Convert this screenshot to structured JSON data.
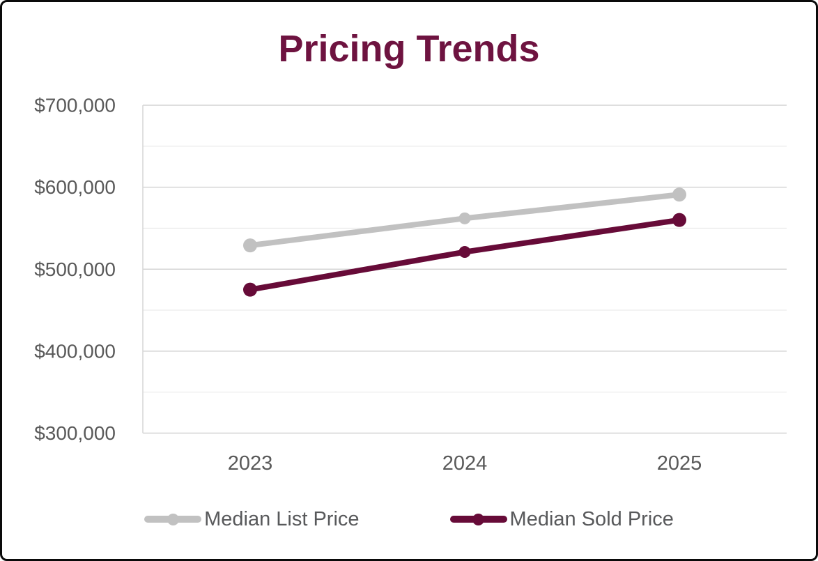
{
  "chart_data": {
    "type": "line",
    "title": "Pricing Trends",
    "categories": [
      "2023",
      "2024",
      "2025"
    ],
    "series": [
      {
        "name": "Median List Price",
        "color": "#C1C1C1",
        "values": [
          529000,
          562000,
          591000
        ]
      },
      {
        "name": "Median Sold Price",
        "color": "#670B38",
        "values": [
          475000,
          521000,
          560000
        ]
      }
    ],
    "ylim": [
      300000,
      700000
    ],
    "y_major_step": 100000,
    "y_minor_step": 50000,
    "y_tick_labels": [
      "$300,000",
      "$400,000",
      "$500,000",
      "$600,000",
      "$700,000"
    ],
    "grid": "horizontal",
    "legend_position": "bottom",
    "colors": {
      "title": "#6E1340",
      "axis_text": "#595959",
      "grid_major": "#D4D4D4",
      "grid_minor": "#E9E9E9",
      "axis_line": "#D6D6D6",
      "background": "#FFFFFF",
      "card_border": "#0A0A0A"
    }
  }
}
